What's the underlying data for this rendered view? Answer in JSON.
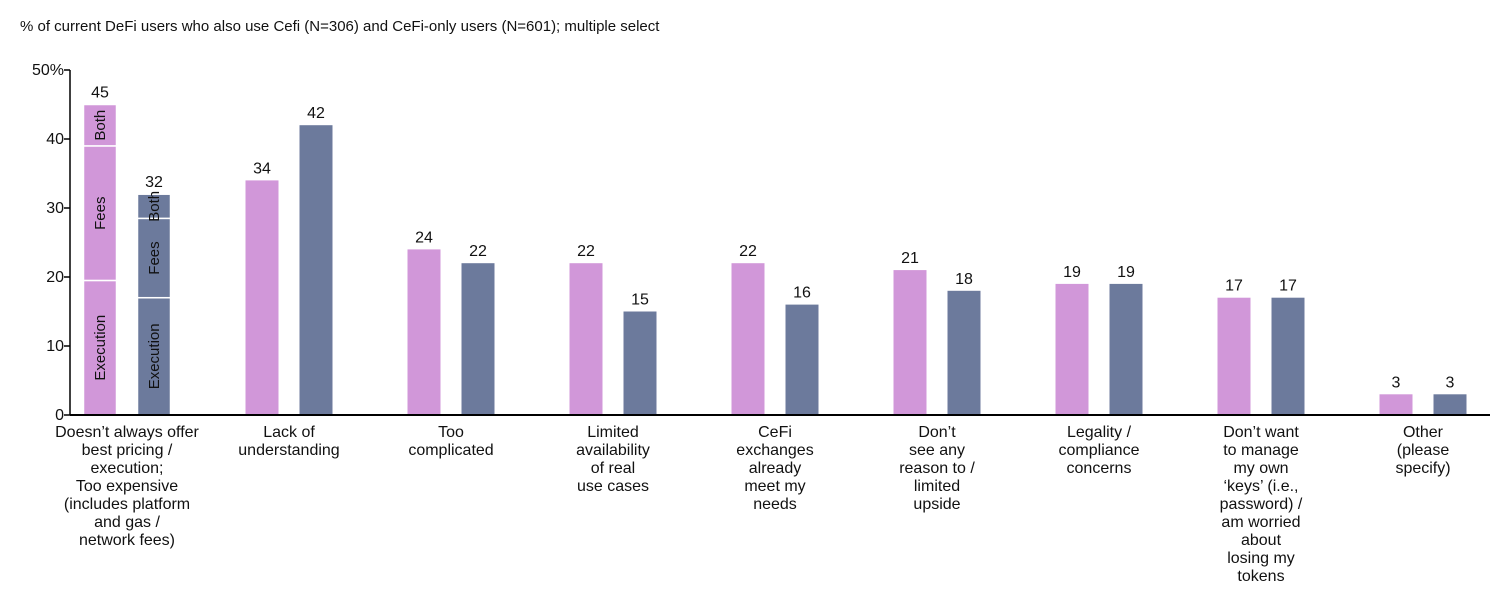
{
  "chart_data": {
    "type": "bar",
    "title": "% of current DeFi users who also use Cefi (N=306) and CeFi-only users (N=601); multiple select",
    "categories": [
      "Doesn’t always offer\nbest pricing /\nexecution;\nToo expensive\n(includes platform\nand gas /\nnetwork fees)",
      "Lack of\nunderstanding",
      "Too\ncomplicated",
      "Limited\navailability\nof real\nuse cases",
      "CeFi\nexchanges\nalready\nmeet my\nneeds",
      "Don’t\nsee any\nreason to /\nlimited\nupside",
      "Legality /\ncompliance\nconcerns",
      "Don’t want\nto manage\nmy own\n‘keys’ (i.e.,\npassword) /\nam worried\nabout\nlosing my\ntokens",
      "Other\n(please\nspecify)"
    ],
    "series": [
      {
        "color": "#d197d9",
        "values": [
          45,
          34,
          24,
          22,
          22,
          21,
          19,
          17,
          3
        ]
      },
      {
        "color": "#6c7a9c",
        "values": [
          32,
          42,
          22,
          15,
          16,
          18,
          19,
          17,
          3
        ]
      }
    ],
    "stacked_segments": [
      {
        "name": "Execution",
        "values": [
          19.5,
          17
        ]
      },
      {
        "name": "Fees",
        "values": [
          19.5,
          11.5
        ]
      },
      {
        "name": "Both",
        "values": [
          6,
          3.5
        ]
      }
    ],
    "ylim": [
      0,
      50
    ],
    "yticks": [
      0,
      10,
      20,
      30,
      40,
      {
        "value": 50,
        "label": "50%"
      }
    ]
  }
}
